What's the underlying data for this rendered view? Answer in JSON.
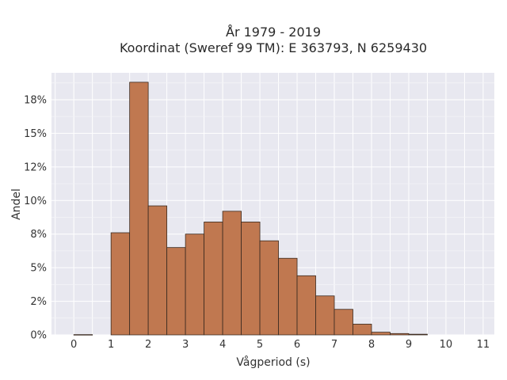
{
  "chart_data": {
    "type": "bar",
    "title_lines": [
      "År 1979 - 2019",
      "Koordinat (Sweref 99 TM): E 363793, N 6259430"
    ],
    "xlabel": "Vågperiod (s)",
    "ylabel": "Andel",
    "bin_width": 0.5,
    "bin_starts": [
      0,
      0.5,
      1,
      1.5,
      2,
      2.5,
      3,
      3.5,
      4,
      4.5,
      5,
      5.5,
      6,
      6.5,
      7,
      7.5,
      8,
      8.5,
      9,
      9.5,
      10,
      10.5
    ],
    "values": [
      0.02,
      0,
      7.6,
      18.8,
      9.6,
      6.5,
      7.5,
      8.4,
      9.2,
      8.4,
      7.0,
      5.7,
      4.4,
      2.9,
      1.9,
      0.8,
      0.2,
      0.1,
      0.05,
      0,
      0,
      0
    ],
    "xlim": [
      -0.6,
      11.3
    ],
    "ylim": [
      0,
      19.5
    ],
    "xticks": [
      0,
      1,
      2,
      3,
      4,
      5,
      6,
      7,
      8,
      9,
      10,
      11
    ],
    "xtick_labels": [
      "0",
      "1",
      "2",
      "3",
      "4",
      "5",
      "6",
      "7",
      "8",
      "9",
      "10",
      "11"
    ],
    "yticks": [
      0,
      2.5,
      5,
      7.5,
      10,
      12.5,
      15,
      17.5
    ],
    "ytick_labels": [
      "0%",
      "2%",
      "5%",
      "8%",
      "10%",
      "12%",
      "15%",
      "18%"
    ],
    "bar_color": "#c07850",
    "plot_background": "#e8e8f0",
    "grid": true
  }
}
